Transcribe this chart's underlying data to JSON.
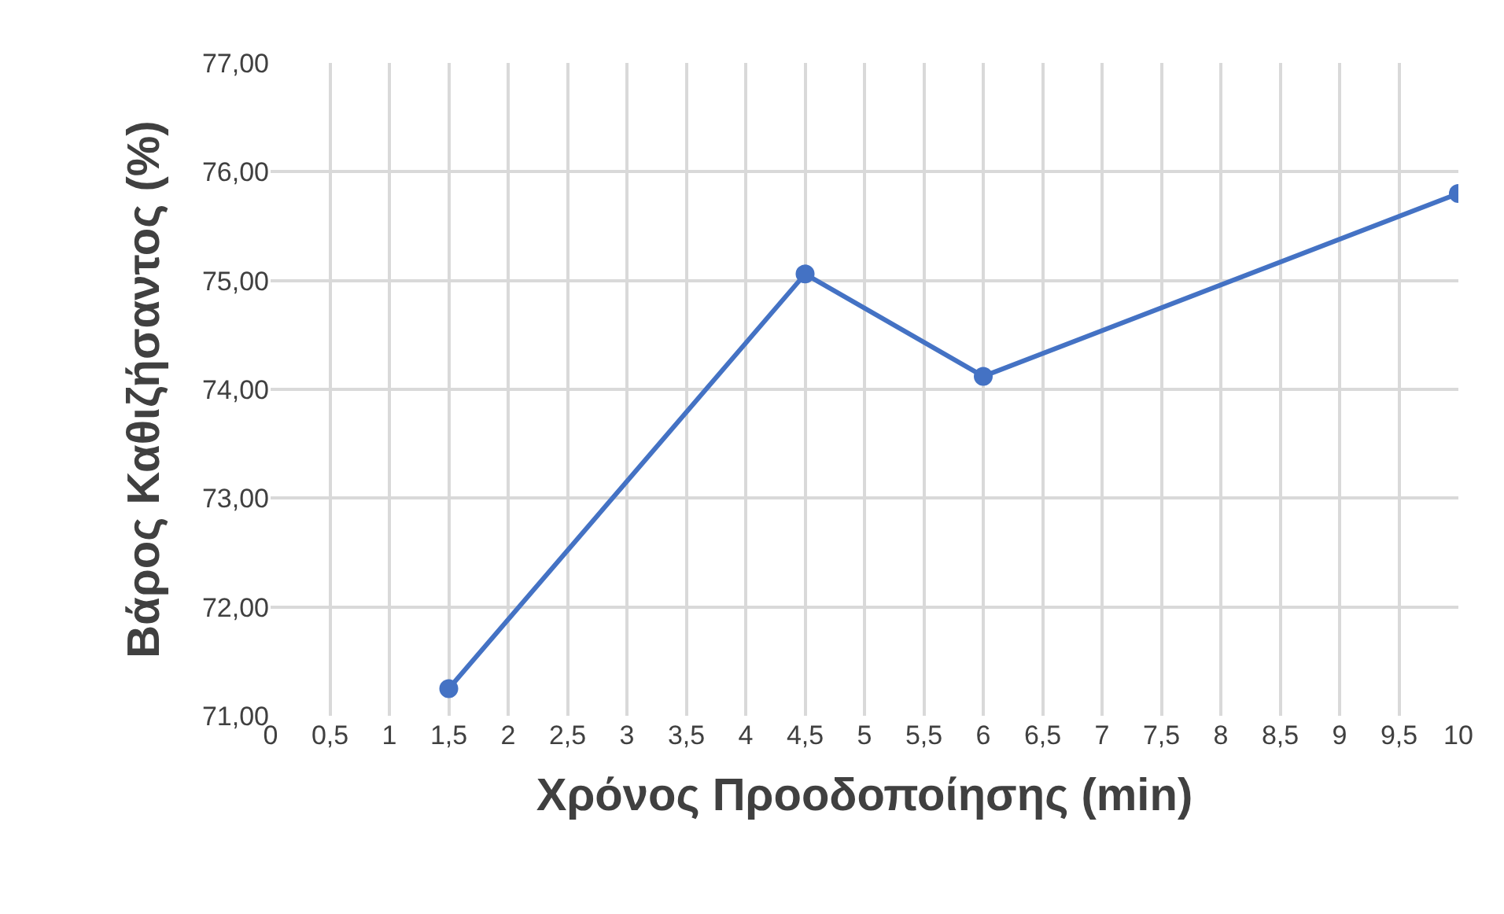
{
  "chart_data": {
    "type": "line",
    "xlabel": "Χρόνος Προοδοποίησης (min)",
    "ylabel": "Βάρος Καθιζήσαντος (%)",
    "x": [
      1.5,
      4.5,
      6,
      10
    ],
    "series": [
      {
        "color": "#4472c4",
        "values": [
          71.25,
          75.06,
          74.12,
          75.8
        ]
      }
    ],
    "xlim": [
      0,
      10
    ],
    "xticks": [
      0,
      {
        "value": 0.5,
        "label": "0,5"
      },
      1,
      {
        "value": 1.5,
        "label": "1,5"
      },
      2,
      {
        "value": 2.5,
        "label": "2,5"
      },
      3,
      {
        "value": 3.5,
        "label": "3,5"
      },
      4,
      {
        "value": 4.5,
        "label": "4,5"
      },
      5,
      {
        "value": 5.5,
        "label": "5,5"
      },
      6,
      {
        "value": 6.5,
        "label": "6,5"
      },
      7,
      {
        "value": 7.5,
        "label": "7,5"
      },
      8,
      {
        "value": 8.5,
        "label": "8,5"
      },
      9,
      {
        "value": 9.5,
        "label": "9,5"
      },
      10
    ],
    "ylim": [
      71,
      77
    ],
    "yticks": [
      {
        "value": 71,
        "label": "71,00"
      },
      {
        "value": 72,
        "label": "72,00"
      },
      {
        "value": 73,
        "label": "73,00"
      },
      {
        "value": 74,
        "label": "74,00"
      },
      {
        "value": 75,
        "label": "75,00"
      },
      {
        "value": 76,
        "label": "76,00"
      },
      {
        "value": 77,
        "label": "77,00"
      }
    ],
    "grid": true,
    "marker": "circle",
    "line_style": "solid",
    "legend": false
  }
}
